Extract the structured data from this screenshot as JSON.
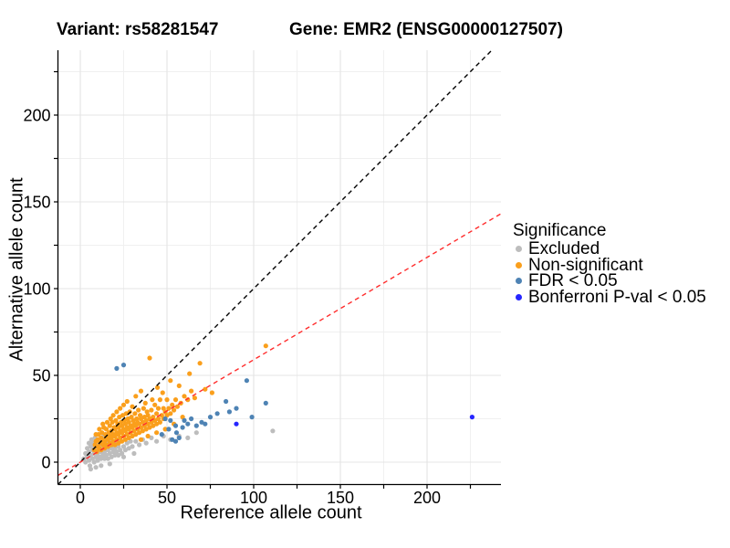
{
  "chart_data": {
    "type": "scatter",
    "title_left": "Variant: rs58281547",
    "title_right": "Gene: EMR2 (ENSG00000127507)",
    "xlabel": "Reference allele count",
    "ylabel": "Alternative allele count",
    "xlim": [
      -12.9,
      242.6
    ],
    "ylim": [
      -12.9,
      237.4
    ],
    "xticks": [
      0,
      50,
      100,
      150,
      200
    ],
    "yticks": [
      0,
      50,
      100,
      150,
      200
    ],
    "minor_ticks": [
      25,
      75,
      125,
      175,
      225
    ],
    "grid": "major and minor gridlines, light gray on white",
    "legend": {
      "title": "Significance",
      "position": "right",
      "items": [
        {
          "label": "Excluded",
          "color": "#BDBDBD"
        },
        {
          "label": "Non-significant",
          "color": "#FA9F1C"
        },
        {
          "label": "FDR < 0.05",
          "color": "#4E83B4"
        },
        {
          "label": "Bonferroni P-val < 0.05",
          "color": "#2626FF"
        }
      ]
    },
    "lines": [
      {
        "name": "identity",
        "slope": 1,
        "intercept": 0,
        "color": "#000000",
        "style": "dashed"
      },
      {
        "name": "fit",
        "slope": 0.59,
        "intercept": 0,
        "color": "#FF2D2D",
        "style": "dashed"
      }
    ],
    "series": [
      {
        "name": "Excluded",
        "color": "#BDBDBD",
        "points": [
          [
            2,
            2
          ],
          [
            3,
            5
          ],
          [
            3,
            0
          ],
          [
            4,
            3
          ],
          [
            4,
            8
          ],
          [
            5,
            1
          ],
          [
            5,
            6
          ],
          [
            5,
            11
          ],
          [
            5.5,
            -2
          ],
          [
            6,
            4
          ],
          [
            6,
            9
          ],
          [
            6.5,
            13
          ],
          [
            7,
            2
          ],
          [
            7,
            7
          ],
          [
            7.5,
            11
          ],
          [
            8,
            0
          ],
          [
            8,
            5
          ],
          [
            8,
            9
          ],
          [
            8.5,
            14
          ],
          [
            9,
            3
          ],
          [
            9,
            7
          ],
          [
            9.5,
            12
          ],
          [
            10,
            1
          ],
          [
            10,
            5
          ],
          [
            10.5,
            10
          ],
          [
            11,
            3
          ],
          [
            11,
            7
          ],
          [
            11.5,
            13
          ],
          [
            12,
            2
          ],
          [
            12,
            6
          ],
          [
            12.5,
            10
          ],
          [
            13,
            4
          ],
          [
            13,
            8
          ],
          [
            13.5,
            15
          ],
          [
            14,
            2
          ],
          [
            14,
            6
          ],
          [
            14.5,
            11
          ],
          [
            15,
            4
          ],
          [
            15,
            8
          ],
          [
            15.5,
            13
          ],
          [
            16,
            2
          ],
          [
            16,
            7
          ],
          [
            16.5,
            11
          ],
          [
            17,
            5
          ],
          [
            17,
            9
          ],
          [
            17.5,
            14
          ],
          [
            18,
            3
          ],
          [
            18,
            8
          ],
          [
            18.5,
            12
          ],
          [
            19,
            6
          ],
          [
            19,
            10
          ],
          [
            20,
            4
          ],
          [
            20,
            8
          ],
          [
            21,
            6
          ],
          [
            21,
            11
          ],
          [
            22,
            4
          ],
          [
            22,
            9
          ],
          [
            23,
            7
          ],
          [
            23,
            12
          ],
          [
            24,
            5
          ],
          [
            25,
            9
          ],
          [
            26,
            7
          ],
          [
            27,
            11
          ],
          [
            28,
            8
          ],
          [
            29,
            12
          ],
          [
            30,
            9
          ],
          [
            32,
            12
          ],
          [
            34,
            10
          ],
          [
            36,
            13
          ],
          [
            38,
            11
          ],
          [
            41,
            14
          ],
          [
            44,
            12
          ],
          [
            48,
            15
          ],
          [
            52,
            13
          ],
          [
            57,
            15
          ],
          [
            62,
            14
          ],
          [
            67,
            17
          ],
          [
            111,
            18
          ],
          [
            6,
            -4
          ],
          [
            9,
            -3
          ],
          [
            12,
            -2
          ],
          [
            17,
            -1
          ],
          [
            25,
            3
          ],
          [
            31,
            5
          ]
        ]
      },
      {
        "name": "Non-significant",
        "color": "#FA9F1C",
        "points": [
          [
            8,
            7
          ],
          [
            8.5,
            10
          ],
          [
            9,
            12
          ],
          [
            9.5,
            6
          ],
          [
            9,
            16
          ],
          [
            10,
            9
          ],
          [
            10,
            13
          ],
          [
            10.5,
            16
          ],
          [
            11,
            8
          ],
          [
            11,
            19
          ],
          [
            11.5,
            11
          ],
          [
            12,
            14
          ],
          [
            12,
            7
          ],
          [
            12.5,
            17
          ],
          [
            13,
            10
          ],
          [
            13,
            13
          ],
          [
            13,
            22
          ],
          [
            13.5,
            20
          ],
          [
            14,
            8
          ],
          [
            14,
            12
          ],
          [
            14.5,
            16
          ],
          [
            15,
            10
          ],
          [
            15,
            14
          ],
          [
            15,
            19
          ],
          [
            15.5,
            23
          ],
          [
            16,
            9
          ],
          [
            16,
            13
          ],
          [
            16.5,
            17
          ],
          [
            17,
            11
          ],
          [
            17,
            15
          ],
          [
            17,
            21
          ],
          [
            17.5,
            25
          ],
          [
            18,
            10
          ],
          [
            18,
            14
          ],
          [
            18,
            18
          ],
          [
            18.5,
            23
          ],
          [
            19,
            12
          ],
          [
            19,
            16
          ],
          [
            19,
            27
          ],
          [
            19.5,
            20
          ],
          [
            20,
            10
          ],
          [
            20,
            15
          ],
          [
            20,
            19
          ],
          [
            20.5,
            24
          ],
          [
            21,
            13
          ],
          [
            21,
            17
          ],
          [
            21,
            29
          ],
          [
            21.5,
            22
          ],
          [
            22,
            11
          ],
          [
            22,
            16
          ],
          [
            22,
            20
          ],
          [
            22.5,
            26
          ],
          [
            23,
            14
          ],
          [
            23,
            18
          ],
          [
            23,
            31
          ],
          [
            23.5,
            23
          ],
          [
            24,
            12
          ],
          [
            24,
            17
          ],
          [
            24,
            21
          ],
          [
            24.5,
            27
          ],
          [
            25,
            15
          ],
          [
            25,
            19
          ],
          [
            25,
            33
          ],
          [
            25.5,
            24
          ],
          [
            26,
            13
          ],
          [
            26,
            18
          ],
          [
            26,
            22
          ],
          [
            26.5,
            28
          ],
          [
            27,
            16
          ],
          [
            27,
            20
          ],
          [
            27,
            35
          ],
          [
            27.5,
            25
          ],
          [
            28,
            14
          ],
          [
            28,
            19
          ],
          [
            28,
            23
          ],
          [
            28.5,
            29
          ],
          [
            29,
            17
          ],
          [
            29,
            21
          ],
          [
            29.5,
            26
          ],
          [
            30,
            15
          ],
          [
            30,
            20
          ],
          [
            30,
            32
          ],
          [
            30.5,
            24
          ],
          [
            31,
            18
          ],
          [
            31,
            22
          ],
          [
            31.5,
            28
          ],
          [
            32,
            16
          ],
          [
            32,
            21
          ],
          [
            32,
            38
          ],
          [
            32.5,
            25
          ],
          [
            33,
            19
          ],
          [
            33,
            23
          ],
          [
            33.5,
            30
          ],
          [
            34,
            17
          ],
          [
            34,
            22
          ],
          [
            34.5,
            27
          ],
          [
            35,
            20
          ],
          [
            35,
            25
          ],
          [
            35,
            41
          ],
          [
            35,
            13
          ],
          [
            36,
            18
          ],
          [
            36,
            23
          ],
          [
            36.5,
            31
          ],
          [
            37,
            21
          ],
          [
            37,
            26
          ],
          [
            37.5,
            34
          ],
          [
            38,
            19
          ],
          [
            38,
            24
          ],
          [
            38.5,
            29
          ],
          [
            39,
            22
          ],
          [
            39,
            27
          ],
          [
            39,
            15
          ],
          [
            40,
            20
          ],
          [
            40,
            25
          ],
          [
            40,
            60
          ],
          [
            41,
            23
          ],
          [
            41,
            30
          ],
          [
            41.5,
            36
          ],
          [
            42,
            21
          ],
          [
            42,
            26
          ],
          [
            43,
            24
          ],
          [
            43,
            33
          ],
          [
            44,
            22
          ],
          [
            44,
            28
          ],
          [
            44.5,
            43
          ],
          [
            45,
            25
          ],
          [
            45,
            31
          ],
          [
            44,
            17
          ],
          [
            46,
            23
          ],
          [
            46,
            36
          ],
          [
            47,
            27
          ],
          [
            47.5,
            40
          ],
          [
            48,
            25
          ],
          [
            48,
            31
          ],
          [
            49,
            29
          ],
          [
            49,
            19
          ],
          [
            50,
            27
          ],
          [
            50,
            36
          ],
          [
            51,
            31
          ],
          [
            52,
            28
          ],
          [
            52,
            47
          ],
          [
            53,
            33
          ],
          [
            54,
            30
          ],
          [
            54,
            22
          ],
          [
            55,
            36
          ],
          [
            56,
            32
          ],
          [
            57,
            44
          ],
          [
            58,
            34
          ],
          [
            59,
            26
          ],
          [
            60,
            38
          ],
          [
            62,
            36
          ],
          [
            63,
            51
          ],
          [
            64,
            41
          ],
          [
            66,
            37
          ],
          [
            69,
            57
          ],
          [
            72,
            42
          ],
          [
            76,
            40
          ],
          [
            107,
            67
          ]
        ]
      },
      {
        "name": "FDR < 0.05",
        "color": "#4E83B4",
        "points": [
          [
            21,
            54
          ],
          [
            25,
            56
          ],
          [
            47,
            16
          ],
          [
            49,
            25
          ],
          [
            51,
            19
          ],
          [
            52,
            24
          ],
          [
            53,
            13
          ],
          [
            55,
            21
          ],
          [
            55.5,
            17
          ],
          [
            55,
            12
          ],
          [
            57,
            14
          ],
          [
            59,
            20
          ],
          [
            60,
            24
          ],
          [
            62,
            22
          ],
          [
            64,
            25
          ],
          [
            67,
            21
          ],
          [
            70,
            23
          ],
          [
            72,
            22
          ],
          [
            75,
            26
          ],
          [
            79,
            28
          ],
          [
            84,
            35
          ],
          [
            86,
            29
          ],
          [
            90,
            31
          ],
          [
            96,
            47
          ],
          [
            99,
            26
          ],
          [
            107,
            34
          ]
        ]
      },
      {
        "name": "Bonferroni P-val < 0.05",
        "color": "#2626FF",
        "points": [
          [
            90,
            22
          ],
          [
            226,
            26
          ]
        ]
      }
    ]
  }
}
